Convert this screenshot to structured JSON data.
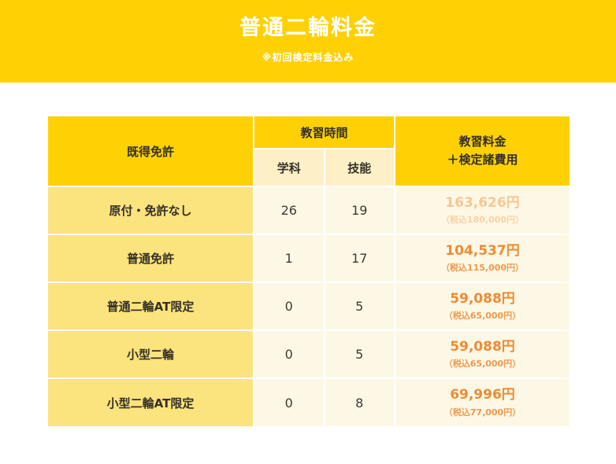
{
  "banner": {
    "title": "普通二輪料金",
    "subtitle": "※初回検定料金込み"
  },
  "table": {
    "header": {
      "license": "既得免許",
      "hours_group": "教習時間",
      "hours_sub": [
        "学科",
        "技能"
      ],
      "fee": "教習料金\n＋検定諸費用"
    },
    "rows": [
      {
        "license": "原付・免許なし",
        "gakka": "26",
        "ginou": "19",
        "price": "163,626円",
        "tax": "（税込180,000円）"
      },
      {
        "license": "普通免許",
        "gakka": "1",
        "ginou": "17",
        "price": "104,537円",
        "tax": "（税込115,000円）"
      },
      {
        "license": "普通二輪AT限定",
        "gakka": "0",
        "ginou": "5",
        "price": "59,088円",
        "tax": "（税込65,000円）"
      },
      {
        "license": "小型二輪",
        "gakka": "0",
        "ginou": "5",
        "price": "59,088円",
        "tax": "（税込65,000円）"
      },
      {
        "license": "小型二輪AT限定",
        "gakka": "0",
        "ginou": "8",
        "price": "69,996円",
        "tax": "（税込77,000円）"
      }
    ]
  },
  "colors": {
    "brand_yellow": "#ffd104",
    "row_yellow": "#fbe37e",
    "subheader_cream": "#fdf0c6",
    "cell_cream": "#fdf8e6",
    "price_orange": "#ee8b33",
    "price_orange_faded": "#f6c794",
    "text_dark": "#343026"
  }
}
